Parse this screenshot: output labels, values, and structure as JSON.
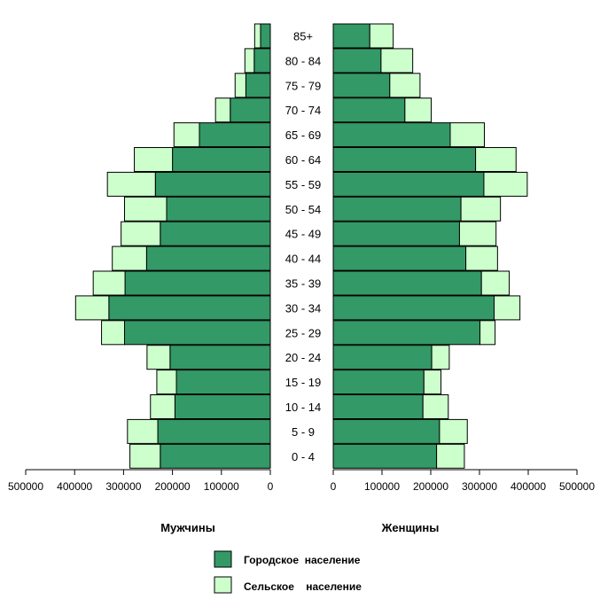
{
  "chart_data": {
    "type": "bar",
    "orientation": "horizontal-mirrored",
    "categories": [
      "0 - 4",
      "5 - 9",
      "10 - 14",
      "15 - 19",
      "20 - 24",
      "25 - 29",
      "30 - 34",
      "35 - 39",
      "40 - 44",
      "45 - 49",
      "50 - 54",
      "55 - 59",
      "60 - 64",
      "65 - 69",
      "70 - 74",
      "75 - 79",
      "80 - 84",
      "85+"
    ],
    "panels": [
      {
        "name": "Мужчины",
        "side": "left",
        "series": [
          {
            "name": "Городское население",
            "color": "#339966",
            "values": [
              225000,
              230000,
              195000,
              192000,
              205000,
              298000,
              330000,
              297000,
              253000,
              225000,
              212000,
              235000,
              200000,
              145000,
              82000,
              50000,
              33000,
              20000
            ]
          },
          {
            "name": "Сельское население",
            "color": "#ccffcc",
            "values": [
              62000,
              62000,
              50000,
              40000,
              47000,
              47000,
              68000,
              65000,
              70000,
              80000,
              86000,
              98000,
              78000,
              52000,
              30000,
              22000,
              19000,
              12000
            ]
          }
        ]
      },
      {
        "name": "Женщины",
        "side": "right",
        "series": [
          {
            "name": "Городское население",
            "color": "#339966",
            "values": [
              212000,
              218000,
              184000,
              186000,
              202000,
              301000,
              330000,
              304000,
              272000,
              259000,
              262000,
              309000,
              292000,
              240000,
              147000,
              116000,
              98000,
              75000
            ]
          },
          {
            "name": "Сельское население",
            "color": "#ccffcc",
            "values": [
              57000,
              57000,
              52000,
              35000,
              36000,
              31000,
              53000,
              57000,
              65000,
              75000,
              81000,
              89000,
              83000,
              70000,
              54000,
              62000,
              65000,
              48000
            ]
          }
        ]
      }
    ],
    "xlim": [
      0,
      500000
    ],
    "x_ticks_left": [
      "500000",
      "400000",
      "300000",
      "200000",
      "100000",
      "0"
    ],
    "x_ticks_right": [
      "0",
      "100000",
      "200000",
      "300000",
      "400000",
      "500000"
    ],
    "stacked": true,
    "grid": false,
    "legend": {
      "placement": "bottom-center",
      "entries": [
        {
          "label": "Городское  население",
          "color": "#339966"
        },
        {
          "label": "Сельское    население",
          "color": "#ccffcc"
        }
      ]
    }
  }
}
